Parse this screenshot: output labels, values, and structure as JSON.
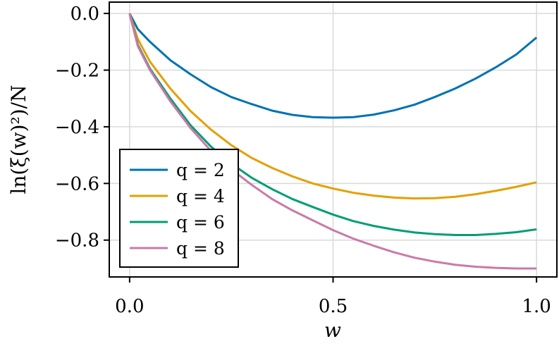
{
  "chart_data": {
    "type": "line",
    "xlabel": "w",
    "ylabel": "ln(ξ(w)²)/N",
    "xlim": [
      -0.05,
      1.05
    ],
    "ylim": [
      -0.93,
      0.04
    ],
    "xticks": [
      0.0,
      0.5,
      1.0
    ],
    "xtick_labels": [
      "0.0",
      "0.5",
      "1.0"
    ],
    "yticks": [
      0.0,
      -0.2,
      -0.4,
      -0.6,
      -0.8
    ],
    "ytick_labels": [
      "0.0",
      "−0.2",
      "−0.4",
      "−0.6",
      "−0.8"
    ],
    "grid": true,
    "legend_position": "lower-left",
    "x": [
      0.0,
      0.02,
      0.05,
      0.1,
      0.15,
      0.2,
      0.25,
      0.3,
      0.35,
      0.4,
      0.45,
      0.5,
      0.55,
      0.6,
      0.65,
      0.7,
      0.75,
      0.8,
      0.85,
      0.9,
      0.95,
      1.0
    ],
    "series": [
      {
        "name": "q = 2",
        "color": "#0072b2",
        "values": [
          0.0,
          -0.055,
          -0.1,
          -0.165,
          -0.215,
          -0.26,
          -0.295,
          -0.32,
          -0.343,
          -0.358,
          -0.366,
          -0.368,
          -0.366,
          -0.357,
          -0.342,
          -0.322,
          -0.295,
          -0.265,
          -0.23,
          -0.19,
          -0.145,
          -0.085
        ]
      },
      {
        "name": "q = 4",
        "color": "#e69f00",
        "values": [
          0.0,
          -0.09,
          -0.17,
          -0.265,
          -0.345,
          -0.41,
          -0.465,
          -0.51,
          -0.545,
          -0.575,
          -0.6,
          -0.618,
          -0.633,
          -0.643,
          -0.65,
          -0.653,
          -0.652,
          -0.647,
          -0.638,
          -0.626,
          -0.612,
          -0.596
        ]
      },
      {
        "name": "q = 6",
        "color": "#009e73",
        "values": [
          0.0,
          -0.11,
          -0.195,
          -0.3,
          -0.395,
          -0.47,
          -0.53,
          -0.58,
          -0.62,
          -0.655,
          -0.683,
          -0.71,
          -0.733,
          -0.75,
          -0.763,
          -0.773,
          -0.779,
          -0.782,
          -0.782,
          -0.778,
          -0.772,
          -0.762
        ]
      },
      {
        "name": "q = 8",
        "color": "#cc79a7",
        "values": [
          0.0,
          -0.115,
          -0.2,
          -0.31,
          -0.405,
          -0.485,
          -0.55,
          -0.605,
          -0.655,
          -0.695,
          -0.73,
          -0.765,
          -0.795,
          -0.82,
          -0.843,
          -0.862,
          -0.876,
          -0.887,
          -0.894,
          -0.898,
          -0.9,
          -0.9
        ]
      }
    ]
  }
}
